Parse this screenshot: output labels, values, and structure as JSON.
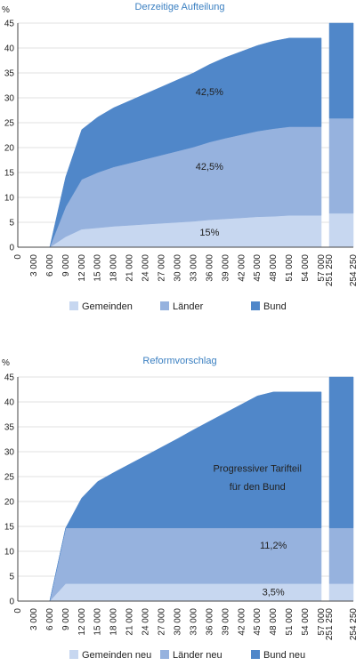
{
  "chart_data": [
    {
      "type": "area",
      "title": "Derzeitige Aufteilung",
      "unit_label": "%",
      "ylim": [
        0,
        45
      ],
      "yticks": [
        0,
        5,
        10,
        15,
        20,
        25,
        30,
        35,
        40,
        45
      ],
      "xticks": [
        "0",
        "3 000",
        "6 000",
        "9 000",
        "12 000",
        "15 000",
        "18 000",
        "21 000",
        "24 000",
        "27 000",
        "30 000",
        "33 000",
        "36 000",
        "39 000",
        "42 000",
        "45 000",
        "48 000",
        "51 000",
        "54 000",
        "57 000",
        "251 250",
        "254 250"
      ],
      "x": [
        0,
        3,
        6,
        9,
        12,
        15,
        18,
        21,
        24,
        27,
        30,
        33,
        36,
        39,
        42,
        45,
        48,
        51,
        54,
        57,
        251,
        254
      ],
      "series": [
        {
          "name": "Gemeinden",
          "color": "#c7d7f0",
          "values": [
            0,
            0,
            0,
            2.1,
            3.6,
            3.9,
            4.2,
            4.4,
            4.6,
            4.8,
            5.0,
            5.2,
            5.5,
            5.7,
            5.9,
            6.1,
            6.2,
            6.4,
            6.4,
            6.4,
            6.8,
            6.8
          ]
        },
        {
          "name": "Länder",
          "color": "#96b2de",
          "values": [
            0,
            0,
            0,
            6.0,
            10.0,
            11.1,
            11.9,
            12.5,
            13.1,
            13.7,
            14.3,
            14.9,
            15.6,
            16.2,
            16.7,
            17.2,
            17.6,
            17.8,
            17.8,
            17.8,
            19.1,
            19.1
          ]
        },
        {
          "name": "Bund",
          "color": "#5087c9",
          "values": [
            0,
            0,
            0,
            6.0,
            10.0,
            11.1,
            11.9,
            12.5,
            13.1,
            13.7,
            14.3,
            14.9,
            15.6,
            16.2,
            16.7,
            17.2,
            17.6,
            17.8,
            17.8,
            17.8,
            19.1,
            19.1
          ]
        }
      ],
      "annotations": [
        {
          "text": "42,5%",
          "x": 36,
          "y": 30.5
        },
        {
          "text": "42,5%",
          "x": 36,
          "y": 15.5
        },
        {
          "text": "15%",
          "x": 36,
          "y": 2.3
        }
      ]
    },
    {
      "type": "area",
      "title": "Reformvorschlag",
      "unit_label": "%",
      "ylim": [
        0,
        45
      ],
      "yticks": [
        0,
        5,
        10,
        15,
        20,
        25,
        30,
        35,
        40,
        45
      ],
      "xticks": [
        "0",
        "3 000",
        "6 000",
        "9 000",
        "12 000",
        "15 000",
        "18 000",
        "21 000",
        "24 000",
        "27 000",
        "30 000",
        "33 000",
        "36 000",
        "39 000",
        "42 000",
        "45 000",
        "48 000",
        "51 000",
        "54 000",
        "57 000",
        "251 250",
        "254 250"
      ],
      "x": [
        0,
        3,
        6,
        9,
        12,
        15,
        18,
        21,
        24,
        27,
        30,
        33,
        36,
        39,
        42,
        45,
        48,
        51,
        54,
        57,
        251,
        254
      ],
      "series": [
        {
          "name": "Gemeinden neu",
          "color": "#c7d7f0",
          "values": [
            0,
            0,
            0,
            3.5,
            3.5,
            3.5,
            3.5,
            3.5,
            3.5,
            3.5,
            3.5,
            3.5,
            3.5,
            3.5,
            3.5,
            3.5,
            3.5,
            3.5,
            3.5,
            3.5,
            3.5,
            3.5
          ]
        },
        {
          "name": "Länder neu",
          "color": "#96b2de",
          "values": [
            0,
            0,
            0,
            11.2,
            11.2,
            11.2,
            11.2,
            11.2,
            11.2,
            11.2,
            11.2,
            11.2,
            11.2,
            11.2,
            11.2,
            11.2,
            11.2,
            11.2,
            11.2,
            11.2,
            11.2,
            11.2
          ]
        },
        {
          "name": "Bund neu",
          "color": "#5087c9",
          "values": [
            0,
            0,
            0,
            0,
            6.0,
            9.3,
            11.1,
            12.8,
            14.5,
            16.2,
            17.9,
            19.7,
            21.4,
            23.1,
            24.8,
            26.5,
            27.3,
            27.3,
            27.3,
            27.3,
            30.3,
            30.3
          ]
        }
      ],
      "annotations": [
        {
          "text": "Progressiver Tarifteil",
          "x": 45,
          "y": 26
        },
        {
          "text": "für den Bund",
          "x": 45,
          "y": 22.3
        },
        {
          "text": "11,2%",
          "x": 48,
          "y": 10.5
        },
        {
          "text": "3,5%",
          "x": 48,
          "y": 1.2
        }
      ]
    }
  ]
}
